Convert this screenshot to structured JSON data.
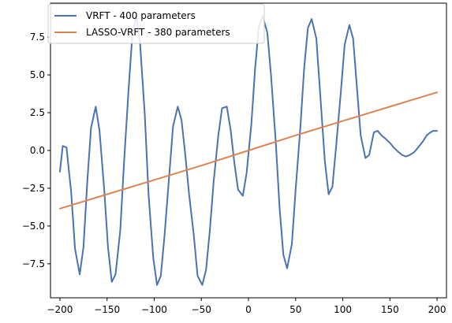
{
  "chart_data": {
    "type": "line",
    "title": "",
    "xlabel": "",
    "ylabel": "",
    "xlim": [
      -210,
      210
    ],
    "ylim": [
      -9.75,
      9.75
    ],
    "grid": false,
    "legend_position": "top-left",
    "x_ticks": [
      -200,
      -150,
      -100,
      -50,
      0,
      50,
      100,
      150,
      200
    ],
    "x_tick_labels": [
      "−200",
      "−150",
      "−100",
      "−50",
      "0",
      "50",
      "100",
      "150",
      "200"
    ],
    "y_ticks": [
      -7.5,
      -5.0,
      -2.5,
      0.0,
      2.5,
      5.0,
      7.5
    ],
    "y_tick_labels": [
      "−7.5",
      "−5.0",
      "−2.5",
      "0.0",
      "2.5",
      "5.0",
      "7.5"
    ],
    "series": [
      {
        "name": "VRFT - 400 parameters",
        "color": "#4c72b0",
        "x": [
          -200,
          -197,
          -193,
          -188,
          -184,
          -179,
          -175,
          -171,
          -167,
          -162,
          -158,
          -153,
          -149,
          -145,
          -141,
          -136,
          -132,
          -127,
          -123,
          -119,
          -115,
          -110,
          -106,
          -101,
          -97,
          -93,
          -89,
          -84,
          -80,
          -75,
          -71,
          -67,
          -63,
          -58,
          -54,
          -49,
          -45,
          -41,
          -37,
          -32,
          -28,
          -23,
          -19,
          -15,
          -11,
          -6,
          -2,
          3,
          7,
          11,
          15,
          20,
          24,
          29,
          33,
          37,
          41,
          46,
          50,
          55,
          59,
          63,
          67,
          72,
          76,
          81,
          85,
          89,
          93,
          98,
          102,
          107,
          111,
          115,
          119,
          124,
          128,
          133,
          137,
          141,
          145,
          150,
          154,
          159,
          163,
          167,
          171,
          176,
          180,
          185,
          189,
          193,
          196,
          198,
          200
        ],
        "y": [
          -1.4,
          0.3,
          0.2,
          -2.8,
          -6.5,
          -8.2,
          -6.4,
          -2.1,
          1.5,
          2.9,
          1.3,
          -2.6,
          -6.4,
          -8.7,
          -8.2,
          -5.3,
          -0.8,
          4.2,
          7.8,
          8.9,
          7.1,
          2.4,
          -2.9,
          -7.1,
          -8.9,
          -8.3,
          -5.6,
          -1.6,
          1.6,
          2.9,
          2.0,
          -0.3,
          -2.9,
          -5.6,
          -8.3,
          -8.9,
          -7.9,
          -5.3,
          -2.1,
          1.0,
          2.8,
          2.9,
          1.4,
          -0.8,
          -2.6,
          -3.0,
          -1.5,
          1.7,
          5.4,
          8.2,
          8.9,
          7.8,
          4.9,
          0.5,
          -3.8,
          -6.9,
          -7.8,
          -6.2,
          -2.6,
          1.5,
          5.4,
          8.1,
          8.7,
          7.4,
          3.8,
          -0.7,
          -2.9,
          -2.4,
          0.3,
          3.9,
          7.0,
          8.3,
          7.4,
          4.2,
          1.0,
          -0.5,
          -0.3,
          1.2,
          1.3,
          1.0,
          0.8,
          0.5,
          0.2,
          -0.1,
          -0.3,
          -0.4,
          -0.3,
          -0.1,
          0.2,
          0.6,
          1.0,
          1.2,
          1.3,
          1.3,
          1.3
        ]
      },
      {
        "name": "LASSO-VRFT - 380 parameters",
        "color": "#dd8452",
        "x": [
          -200,
          -150,
          -100,
          -50,
          0,
          50,
          100,
          150,
          200
        ],
        "y": [
          -3.85,
          -2.9,
          -1.95,
          -1.0,
          0.0,
          1.0,
          1.95,
          2.9,
          3.85
        ]
      }
    ]
  }
}
